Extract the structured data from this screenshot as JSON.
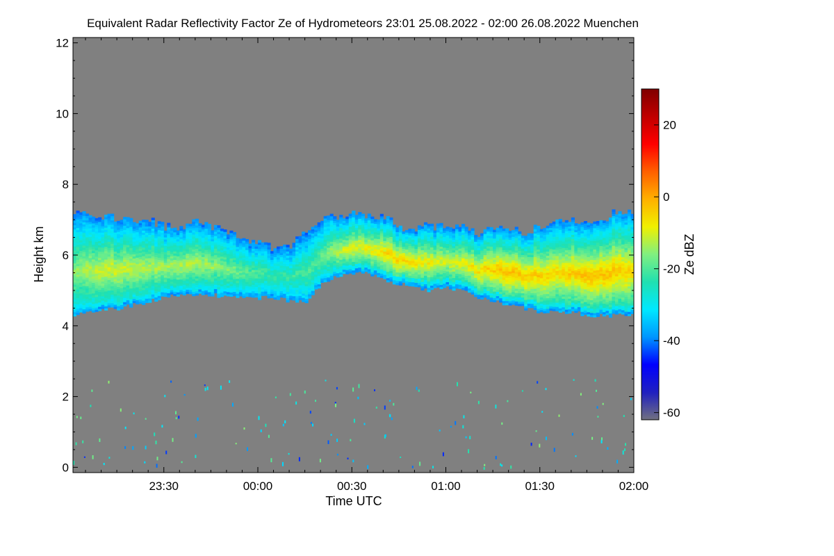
{
  "chart_data": {
    "type": "heatmap",
    "title": "Equivalent Radar Reflectivity Factor Ze of Hydrometeors   23:01 25.08.2022 - 02:00 26.08.2022 Muenchen",
    "xlabel": "Time UTC",
    "ylabel": "Height km",
    "x_range_minutes": [
      -59,
      120
    ],
    "x_ticks": [
      {
        "label": "23:30",
        "minutes": -30
      },
      {
        "label": "00:00",
        "minutes": 0
      },
      {
        "label": "00:30",
        "minutes": 30
      },
      {
        "label": "01:00",
        "minutes": 60
      },
      {
        "label": "01:30",
        "minutes": 90
      },
      {
        "label": "02:00",
        "minutes": 120
      }
    ],
    "y_range_km": [
      -0.15,
      12.15
    ],
    "y_ticks": [
      0,
      2,
      4,
      6,
      8,
      10,
      12
    ],
    "colorbar": {
      "label": "Ze dBZ",
      "range": [
        -62,
        30
      ],
      "ticks": [
        20,
        0,
        -20,
        -40,
        -60
      ],
      "colors": [
        "#707080",
        "#2020c0",
        "#0000ff",
        "#0096ff",
        "#00e8ff",
        "#20e0b0",
        "#80f080",
        "#f0f000",
        "#ffb000",
        "#ff6000",
        "#ff0000",
        "#c00000",
        "#800000"
      ]
    },
    "background_color": "#808080",
    "cloud_layer": {
      "description": "reflectivity field with top and base heights (km) over time (minutes from 00:00)",
      "time": [
        -59,
        -55,
        -50,
        -45,
        -40,
        -35,
        -30,
        -25,
        -20,
        -15,
        -10,
        -5,
        0,
        5,
        10,
        15,
        20,
        25,
        30,
        35,
        40,
        45,
        50,
        55,
        60,
        65,
        70,
        75,
        80,
        85,
        90,
        95,
        100,
        105,
        110,
        115,
        120
      ],
      "top_km": [
        7.1,
        7.1,
        7.1,
        7.0,
        7.0,
        6.9,
        6.8,
        6.8,
        6.9,
        6.8,
        6.6,
        6.4,
        6.3,
        6.2,
        6.3,
        6.6,
        7.0,
        7.1,
        7.1,
        7.05,
        7.0,
        6.8,
        6.7,
        6.8,
        6.7,
        6.8,
        6.6,
        6.8,
        6.7,
        6.6,
        6.8,
        6.9,
        6.9,
        6.9,
        7.0,
        7.2,
        7.1
      ],
      "base_km": [
        4.3,
        4.4,
        4.5,
        4.5,
        4.6,
        4.7,
        4.8,
        4.9,
        4.9,
        4.9,
        4.8,
        4.8,
        4.8,
        4.8,
        4.7,
        4.7,
        5.2,
        5.4,
        5.5,
        5.5,
        5.3,
        5.2,
        5.1,
        5.0,
        5.1,
        5.0,
        4.8,
        4.7,
        4.6,
        4.5,
        4.4,
        4.4,
        4.4,
        4.3,
        4.3,
        4.3,
        4.3
      ],
      "peak_dbz": [
        -15,
        -12,
        -10,
        -10,
        -11,
        -12,
        -13,
        -12,
        -12,
        -14,
        -16,
        -18,
        -20,
        -22,
        -22,
        -20,
        -18,
        -12,
        -8,
        -8,
        -5,
        -4,
        -6,
        -8,
        -10,
        -8,
        -6,
        -3,
        -2,
        -3,
        -4,
        -5,
        -3,
        -2,
        -2,
        -3,
        -5
      ]
    },
    "ground_clutter": {
      "description": "sparse speckle below 2.5 km",
      "max_height_km": 2.5
    }
  }
}
